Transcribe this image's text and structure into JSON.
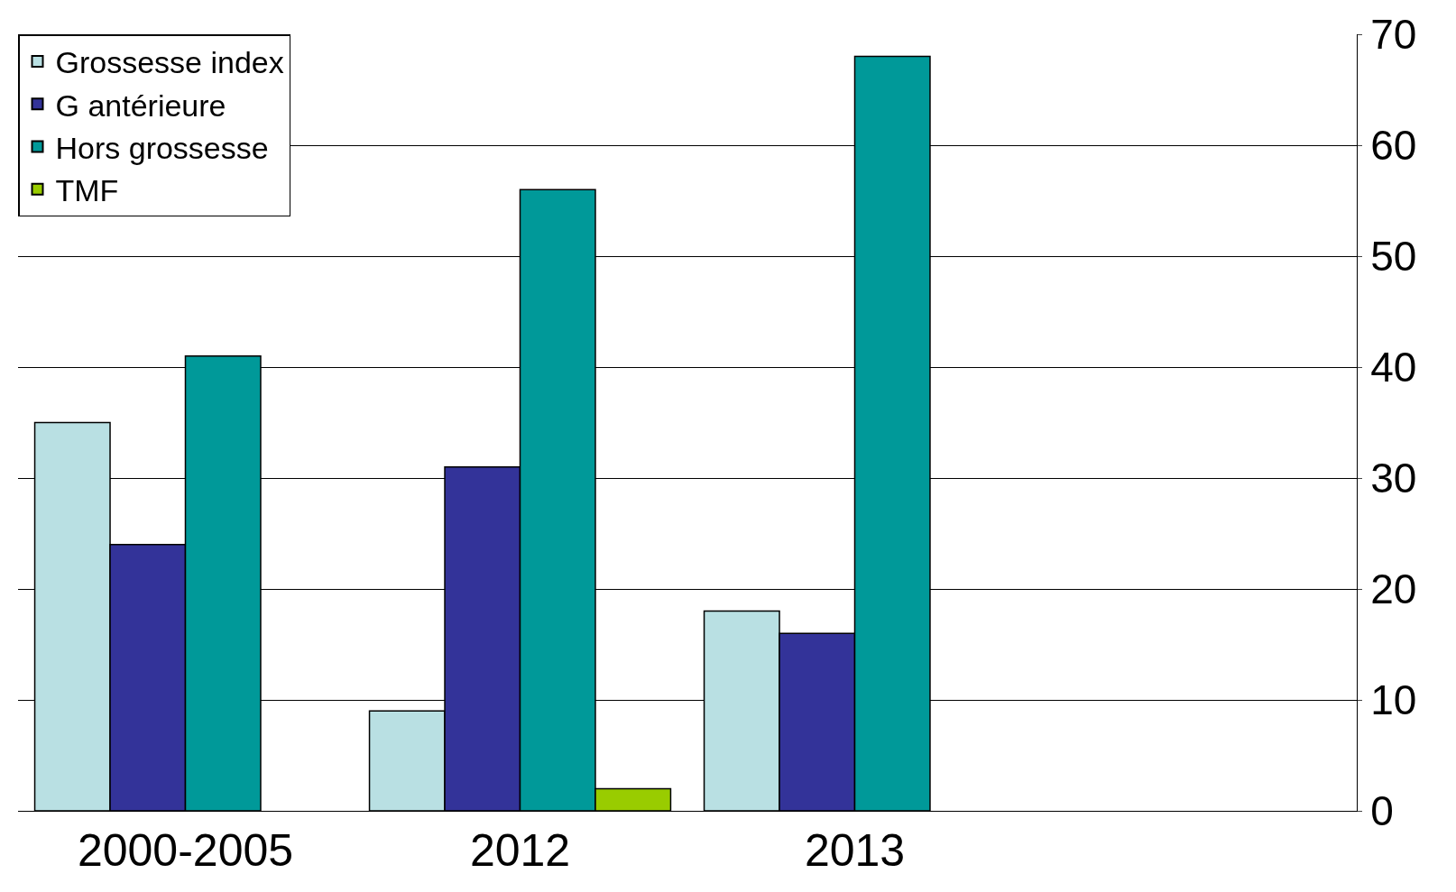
{
  "chart_data": {
    "type": "bar",
    "categories": [
      "2000-2005",
      "2012",
      "2013",
      null
    ],
    "series": [
      {
        "name": "Grossesse index",
        "color": "#b9e0e3",
        "values": [
          35,
          9,
          18,
          null
        ]
      },
      {
        "name": "G antérieure",
        "color": "#333399",
        "values": [
          24,
          31,
          16,
          null
        ]
      },
      {
        "name": "Hors grossesse",
        "color": "#009999",
        "values": [
          41,
          56,
          68,
          null
        ]
      },
      {
        "name": "TMF",
        "color": "#99cc00",
        "values": [
          null,
          2,
          null,
          null
        ]
      }
    ],
    "ylim": [
      0,
      70
    ],
    "yticks": [
      0,
      10,
      20,
      30,
      40,
      50,
      60,
      70
    ],
    "grid": "y",
    "legend": "top left"
  }
}
